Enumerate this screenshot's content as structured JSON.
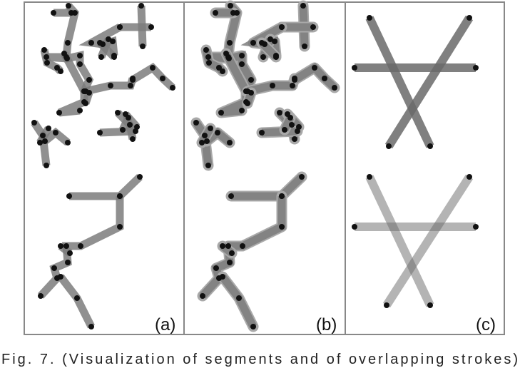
{
  "figure": {
    "panels": [
      {
        "id": "a",
        "label": "(a)"
      },
      {
        "id": "b",
        "label": "(b)"
      },
      {
        "id": "c",
        "label": "(c)"
      }
    ],
    "caption": "Fig. 7. (Visualization of segments and of overlapping strokes)",
    "colors": {
      "stroke": "#7d7d7d",
      "stroke_halo": "#a9a9a9",
      "node": "#111111",
      "border": "#888888"
    }
  }
}
